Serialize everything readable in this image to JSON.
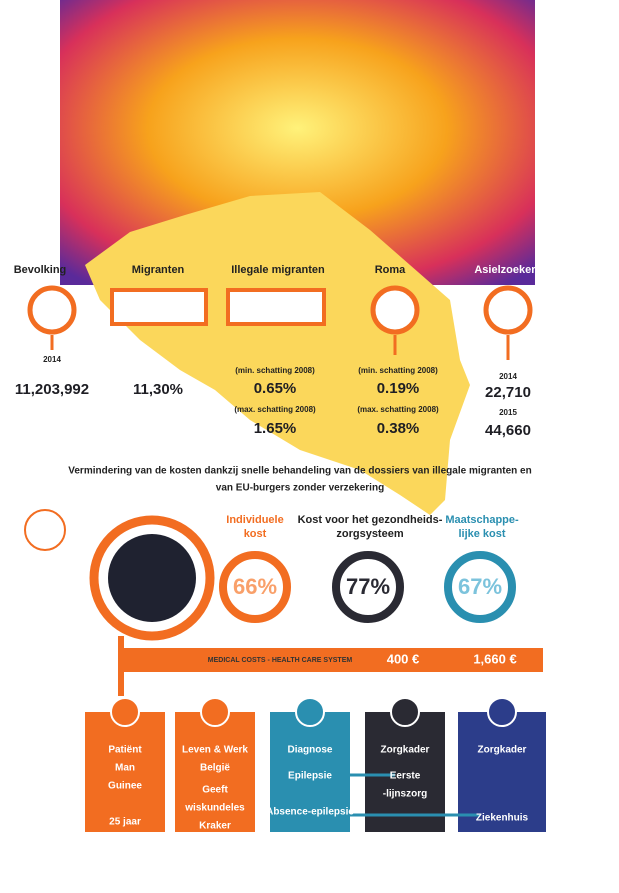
{
  "stats": [
    {
      "label": "Bevolking",
      "year": "2014",
      "value": "11,203,992"
    },
    {
      "label": "Migranten",
      "value": "11,30%"
    },
    {
      "label": "Illegale migranten",
      "min_label": "(min. schatting 2008)",
      "min": "0.65%",
      "max_label": "(max. schatting 2008)",
      "max": "1.65%"
    },
    {
      "label": "Roma",
      "min_label": "(min. schatting 2008)",
      "min": "0.19%",
      "max_label": "(max. schatting 2008)",
      "max": "0.38%"
    },
    {
      "label": "Asielzoekers",
      "year1": "2014",
      "value1": "22,710",
      "year2": "2015",
      "value2": "44,660"
    }
  ],
  "heading": [
    "Vermindering van de kosten dankzij snelle behandeling van de dossiers van illegale migranten en",
    "van EU-burgers zonder verzekering"
  ],
  "costs": [
    {
      "title": [
        "Individuele",
        "kost"
      ],
      "value": "66%"
    },
    {
      "title": [
        "Kost voor het gezondheids-",
        "zorgsysteem"
      ],
      "value": "77%"
    },
    {
      "title": [
        "Maatschappe-",
        "lijke kost"
      ],
      "value": "67%"
    }
  ],
  "bar": {
    "label": "MEDICAL COSTS - HEALTH CARE SYSTEM",
    "cost1": "400 €",
    "cost2": "1,660 €"
  },
  "boxes": [
    {
      "lines": [
        "Patiënt",
        "Man",
        "Guinee",
        "25 jaar"
      ]
    },
    {
      "lines": [
        "Leven & Werk",
        "België",
        "Geeft",
        "wiskundeles",
        "Kraker"
      ]
    },
    {
      "lines": [
        "Diagnose",
        "Epilepsie",
        "Absence-epilepsie"
      ]
    },
    {
      "lines": [
        "Zorgkader",
        "Eerste",
        "-lijnszorg"
      ]
    },
    {
      "lines": [
        "Zorgkader",
        "Ziekenhuis"
      ]
    }
  ]
}
